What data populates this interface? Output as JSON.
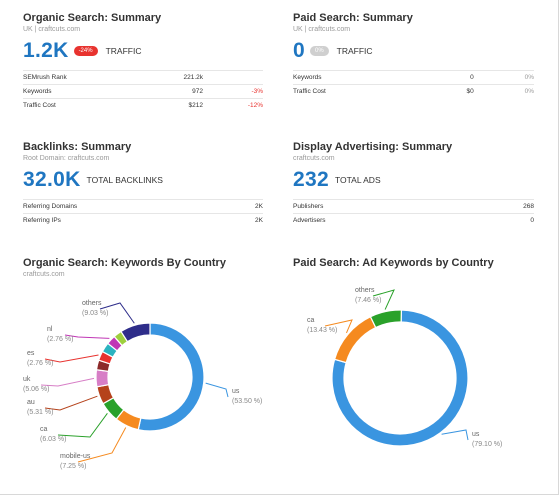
{
  "organic_summary": {
    "title": "Organic Search: Summary",
    "subtitle": "UK | craftcuts.com",
    "value": "1.2K",
    "badge": "-24%",
    "label": "TRAFFIC",
    "rows": [
      {
        "name": "SEMrush Rank",
        "value": "221.2k",
        "change": ""
      },
      {
        "name": "Keywords",
        "value": "972",
        "change": "-3%"
      },
      {
        "name": "Traffic Cost",
        "value": "$212",
        "change": "-12%"
      }
    ]
  },
  "paid_summary": {
    "title": "Paid Search: Summary",
    "subtitle": "UK | craftcuts.com",
    "value": "0",
    "badge": "0%",
    "label": "TRAFFIC",
    "rows": [
      {
        "name": "Keywords",
        "value": "0",
        "change": "0%"
      },
      {
        "name": "Traffic Cost",
        "value": "$0",
        "change": "0%"
      }
    ]
  },
  "backlinks": {
    "title": "Backlinks: Summary",
    "subtitle": "Root Domain: craftcuts.com",
    "value": "32.0K",
    "label": "TOTAL BACKLINKS",
    "rows": [
      {
        "name": "Referring Domains",
        "value": "2K"
      },
      {
        "name": "Referring IPs",
        "value": "2K"
      }
    ]
  },
  "display_ads": {
    "title": "Display Advertising: Summary",
    "subtitle": "craftcuts.com",
    "value": "232",
    "label": "TOTAL ADS",
    "rows": [
      {
        "name": "Publishers",
        "value": "268"
      },
      {
        "name": "Advertisers",
        "value": "0"
      }
    ]
  },
  "organic_by_country": {
    "title": "Organic Search: Keywords By Country",
    "subtitle": "craftcuts.com"
  },
  "paid_by_country": {
    "title": "Paid Search: Ad Keywords by Country",
    "subtitle": ""
  },
  "chart_data": [
    {
      "type": "pie",
      "title": "Organic Search: Keywords By Country",
      "donut": true,
      "slices": [
        {
          "label": "us",
          "pct_text": "(53.50 %)",
          "value": 53.5,
          "color": "#3a95e0"
        },
        {
          "label": "mobile-us",
          "pct_text": "(7.25 %)",
          "value": 7.25,
          "color": "#f58a1f"
        },
        {
          "label": "ca",
          "pct_text": "(6.03 %)",
          "value": 6.03,
          "color": "#2aa12a"
        },
        {
          "label": "au",
          "pct_text": "(5.31 %)",
          "value": 5.31,
          "color": "#b5421b"
        },
        {
          "label": "uk",
          "pct_text": "(5.06 %)",
          "value": 5.06,
          "color": "#d77ec6"
        },
        {
          "label": "",
          "pct_text": "",
          "value": 2.9,
          "color": "#8c2a2a"
        },
        {
          "label": "es",
          "pct_text": "(2.76 %)",
          "value": 2.76,
          "color": "#e8332f"
        },
        {
          "label": "",
          "pct_text": "",
          "value": 2.9,
          "color": "#2bb3c0"
        },
        {
          "label": "nl",
          "pct_text": "(2.76 %)",
          "value": 2.76,
          "color": "#c037b5"
        },
        {
          "label": "",
          "pct_text": "",
          "value": 2.5,
          "color": "#9ecf3e"
        },
        {
          "label": "others",
          "pct_text": "(9.03 %)",
          "value": 9.03,
          "color": "#2e2d8a"
        }
      ]
    },
    {
      "type": "pie",
      "title": "Paid Search: Ad Keywords by Country",
      "donut": true,
      "slices": [
        {
          "label": "us",
          "pct_text": "(79.10 %)",
          "value": 79.1,
          "color": "#3a95e0"
        },
        {
          "label": "ca",
          "pct_text": "(13.43 %)",
          "value": 13.43,
          "color": "#f58a1f"
        },
        {
          "label": "others",
          "pct_text": "(7.46 %)",
          "value": 7.46,
          "color": "#2aa12a"
        }
      ]
    }
  ]
}
